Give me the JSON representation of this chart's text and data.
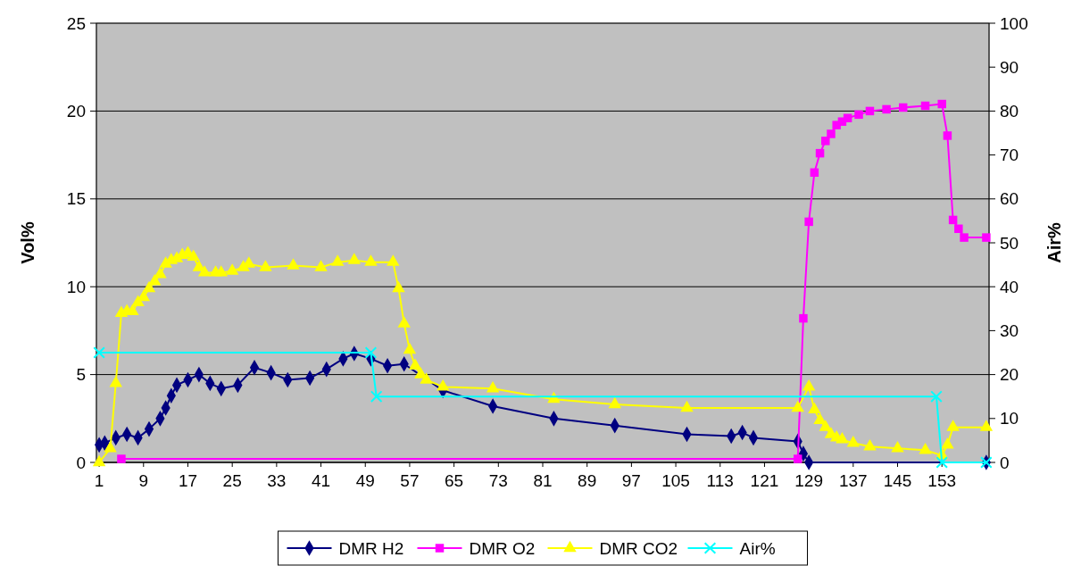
{
  "chart_data": {
    "type": "line",
    "ylabel": "Vol%",
    "y2label": "Air%",
    "xlim": [
      0.5,
      161.5
    ],
    "xticks": [
      1,
      9,
      17,
      25,
      33,
      41,
      49,
      57,
      65,
      73,
      81,
      89,
      97,
      105,
      113,
      121,
      129,
      137,
      145,
      153
    ],
    "ylim": [
      0,
      25
    ],
    "yticks": [
      0,
      5,
      10,
      15,
      20,
      25
    ],
    "y2lim": [
      0,
      100
    ],
    "y2ticks": [
      0,
      10,
      20,
      30,
      40,
      50,
      60,
      70,
      80,
      90,
      100
    ],
    "grid": "y",
    "legend": "bottom",
    "series": [
      {
        "name": "DMR H2",
        "color": "#000080",
        "marker": "diamond",
        "x": [
          1,
          2,
          4,
          6,
          8,
          10,
          12,
          13,
          14,
          15,
          17,
          19,
          21,
          23,
          26,
          29,
          32,
          35,
          39,
          42,
          45,
          47,
          50,
          53,
          56,
          63,
          72,
          83,
          94,
          107,
          115,
          117,
          119,
          127,
          128,
          129,
          161
        ],
        "values": [
          1.0,
          1.1,
          1.4,
          1.6,
          1.4,
          1.9,
          2.5,
          3.1,
          3.8,
          4.4,
          4.7,
          5.0,
          4.5,
          4.2,
          4.4,
          5.4,
          5.1,
          4.7,
          4.8,
          5.3,
          5.9,
          6.2,
          5.9,
          5.5,
          5.6,
          4.1,
          3.2,
          2.5,
          2.1,
          1.6,
          1.5,
          1.7,
          1.4,
          1.2,
          0.5,
          0,
          0
        ]
      },
      {
        "name": "DMR O2",
        "color": "#ff00ff",
        "marker": "square",
        "x": [
          5,
          127,
          128,
          129,
          130,
          131,
          132,
          133,
          134,
          135,
          136,
          138,
          140,
          143,
          146,
          150,
          153,
          154,
          155,
          156,
          157,
          161
        ],
        "values": [
          0.2,
          0.2,
          8.2,
          13.7,
          16.5,
          17.6,
          18.3,
          18.7,
          19.2,
          19.4,
          19.6,
          19.8,
          20.0,
          20.1,
          20.2,
          20.3,
          20.4,
          18.6,
          13.8,
          13.3,
          12.8,
          12.8
        ]
      },
      {
        "name": "DMR CO2",
        "color": "#ffff00",
        "marker": "triangle",
        "x": [
          1,
          3,
          4,
          5,
          6,
          7,
          8,
          9,
          10,
          11,
          12,
          13,
          14,
          15,
          16,
          17,
          18,
          19,
          20,
          22,
          23,
          25,
          27,
          28,
          31,
          36,
          41,
          44,
          47,
          50,
          54,
          55,
          56,
          57,
          58,
          59,
          60,
          63,
          72,
          83,
          94,
          107,
          127,
          129,
          130,
          131,
          132,
          133,
          134,
          135,
          137,
          140,
          145,
          150,
          153,
          154,
          155,
          161
        ],
        "values": [
          0,
          0.8,
          4.5,
          8.5,
          8.6,
          8.6,
          9.1,
          9.4,
          9.9,
          10.3,
          10.7,
          11.3,
          11.5,
          11.6,
          11.8,
          11.9,
          11.7,
          11.1,
          10.8,
          10.8,
          10.8,
          10.9,
          11.1,
          11.3,
          11.1,
          11.2,
          11.1,
          11.4,
          11.5,
          11.4,
          11.4,
          9.9,
          7.9,
          6.4,
          5.5,
          5.0,
          4.7,
          4.3,
          4.2,
          3.6,
          3.3,
          3.1,
          3.1,
          4.3,
          3.0,
          2.4,
          2.0,
          1.6,
          1.4,
          1.3,
          1.1,
          0.9,
          0.8,
          0.7,
          0.4,
          1.0,
          2.0,
          2.0
        ]
      },
      {
        "name": "Air%",
        "color": "#00ffff",
        "marker": "cross",
        "axis": "y2",
        "x": [
          1,
          50,
          51,
          152,
          153,
          161
        ],
        "values": [
          25,
          25,
          15,
          15,
          0,
          0
        ]
      }
    ]
  }
}
